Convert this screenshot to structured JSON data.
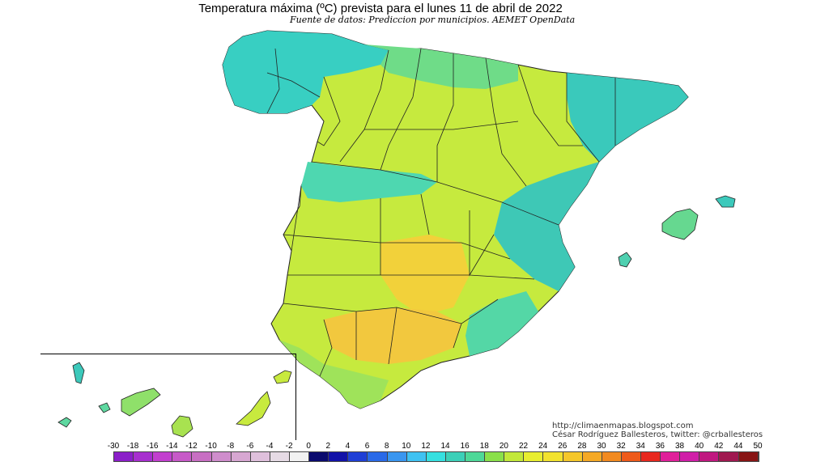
{
  "header": {
    "title": "Temperatura máxima (ºC) prevista para el lunes 11 de abril de 2022",
    "subtitle": "Fuente de datos: Prediccion por municipios. AEMET OpenData"
  },
  "credits": {
    "url": "http://climaenmapas.blogspot.com",
    "author": "César Rodríguez Ballesteros, twitter: @crballesteros"
  },
  "legend": {
    "labels": [
      "-30",
      "-18",
      "-16",
      "-14",
      "-12",
      "-10",
      "-8",
      "-6",
      "-4",
      "-2",
      "0",
      "2",
      "4",
      "6",
      "8",
      "10",
      "12",
      "14",
      "16",
      "18",
      "20",
      "22",
      "24",
      "26",
      "28",
      "30",
      "32",
      "34",
      "36",
      "38",
      "40",
      "42",
      "44",
      "50"
    ],
    "colors": [
      "#8b1fc9",
      "#a72fcf",
      "#c23fcf",
      "#c75ac8",
      "#c86fc3",
      "#cf8dcc",
      "#d7a7d2",
      "#dfc0dc",
      "#e6dbe5",
      "#f2f2f2",
      "#0a0a6e",
      "#1212a8",
      "#1f3fd6",
      "#2a6ae8",
      "#3a96f0",
      "#3fc2f2",
      "#36e0e0",
      "#3cd0b8",
      "#4ed898",
      "#8ae04a",
      "#c2e83a",
      "#e8ee30",
      "#f2e22e",
      "#f5c72a",
      "#f5a925",
      "#f28a1f",
      "#ee5a1a",
      "#e8281e",
      "#e0209a",
      "#d01ea8",
      "#c01880",
      "#a01850",
      "#881414"
    ],
    "colors_note": "temperature scale"
  },
  "map": {
    "region_colors": {
      "sea": "#ffffff",
      "cool": "#34c9c0",
      "mild": "#8fe06a",
      "warm": "#d8ee3a",
      "hot": "#f0d63a",
      "hottest": "#f2c23c"
    }
  }
}
